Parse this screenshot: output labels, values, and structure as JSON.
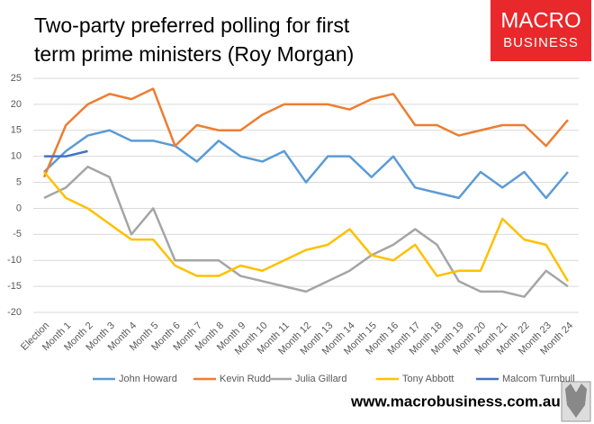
{
  "chart_data": {
    "type": "line",
    "title": [
      "Two-party preferred polling for first",
      "term prime ministers (Roy Morgan)"
    ],
    "brand": [
      "MACRO",
      "BUSINESS"
    ],
    "footer": "www.macrobusiness.com.au",
    "categories": [
      "Election",
      "Month 1",
      "Month 2",
      "Month 3",
      "Month 4",
      "Month 5",
      "Month 6",
      "Month 7",
      "Month 8",
      "Month 9",
      "Month 10",
      "Month 11",
      "Month 12",
      "Month 13",
      "Month 14",
      "Month 15",
      "Month 16",
      "Month 17",
      "Month 18",
      "Month 19",
      "Month 20",
      "Month 21",
      "Month 22",
      "Month 23",
      "Month 24"
    ],
    "series": [
      {
        "name": "John Howard",
        "color": "#5b9bd5",
        "values": [
          7,
          11,
          14,
          15,
          13,
          13,
          12,
          9,
          13,
          10,
          9,
          11,
          5,
          10,
          10,
          6,
          10,
          4,
          3,
          2,
          7,
          4,
          7,
          2,
          7
        ]
      },
      {
        "name": "Kevin Rudd",
        "color": "#ed7d31",
        "values": [
          6,
          16,
          20,
          22,
          21,
          23,
          12,
          16,
          15,
          15,
          18,
          20,
          20,
          20,
          19,
          21,
          22,
          16,
          16,
          14,
          15,
          16,
          16,
          12,
          17
        ]
      },
      {
        "name": "Julia Gillard",
        "color": "#a5a5a5",
        "values": [
          2,
          4,
          8,
          6,
          -5,
          0,
          -10,
          -10,
          -10,
          -13,
          -14,
          -15,
          -16,
          -14,
          -12,
          -9,
          -7,
          -4,
          -7,
          -14,
          -16,
          -16,
          -17,
          -12,
          -15
        ]
      },
      {
        "name": "Tony Abbott",
        "color": "#ffc000",
        "values": [
          7,
          2,
          0,
          -3,
          -6,
          -6,
          -11,
          -13,
          -13,
          -11,
          -12,
          -10,
          -8,
          -7,
          -4,
          -9,
          -10,
          -7,
          -13,
          -12,
          -12,
          -2,
          -6,
          -7,
          -14
        ]
      },
      {
        "name": "Malcom Turnbull",
        "color": "#4472c4",
        "values": [
          10,
          10,
          11,
          null,
          null,
          null,
          null,
          null,
          null,
          null,
          null,
          null,
          null,
          null,
          null,
          null,
          null,
          null,
          null,
          null,
          null,
          null,
          null,
          null,
          null
        ]
      }
    ],
    "ylim": [
      -20,
      25
    ],
    "yticks": [
      -20,
      -15,
      -10,
      -5,
      0,
      5,
      10,
      15,
      20,
      25
    ],
    "grid": true,
    "legend": "bottom"
  }
}
